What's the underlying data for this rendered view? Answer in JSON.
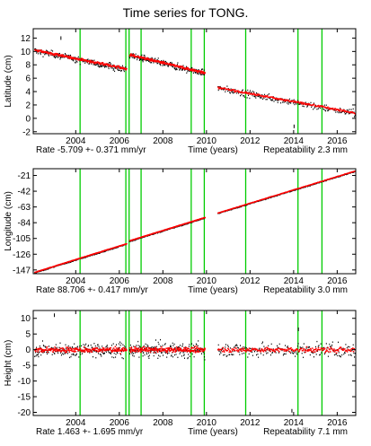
{
  "title": "Time series for TONG.",
  "colors": {
    "obs": "#000000",
    "model": "#ff0000",
    "event": "#00cc00",
    "frame": "#000000"
  },
  "chart_data": [
    {
      "type": "scatter",
      "ylabel": "Latitude (cm)",
      "xlabel": "Time (years)",
      "xlim": [
        2002.05,
        2016.85
      ],
      "ylim": [
        -2.3,
        13.4
      ],
      "x_ticks": [
        "2004",
        "2006",
        "2008",
        "2010",
        "2012",
        "2014",
        "2016"
      ],
      "y_ticks": [
        "-2",
        "0",
        "2",
        "4",
        "6",
        "8",
        "10",
        "12"
      ],
      "rate_text": "Rate -5.709 +- 0.371 mm/yr",
      "repeat_text": "Repeatability 2.3 mm",
      "event_lines": [
        2004.2,
        2006.3,
        2006.45,
        2007.0,
        2009.3,
        2009.9,
        2011.8,
        2014.2,
        2015.3
      ],
      "segments": [
        {
          "x": [
            2002.1,
            2006.3
          ],
          "y": [
            10.2,
            7.4
          ]
        },
        {
          "x": [
            2006.45,
            2009.9
          ],
          "y": [
            9.5,
            6.8
          ]
        },
        {
          "x": [
            2010.5,
            2016.8
          ],
          "y": [
            4.6,
            0.8
          ]
        }
      ],
      "noise": 0.35,
      "outliers": [
        {
          "x": 2003.3,
          "y": 12.0
        },
        {
          "x": 2014.0,
          "y": -1.2
        }
      ]
    },
    {
      "type": "scatter",
      "ylabel": "Longitude (cm)",
      "xlabel": "Time (years)",
      "xlim": [
        2002.05,
        2016.85
      ],
      "ylim": [
        -152,
        -12
      ],
      "x_ticks": [
        "2004",
        "2006",
        "2008",
        "2010",
        "2012",
        "2014",
        "2016"
      ],
      "y_ticks": [
        "-147",
        "-126",
        "-105",
        "-84",
        "-63",
        "-42",
        "-21"
      ],
      "rate_text": "Rate 88.706 +- 0.417 mm/yr",
      "repeat_text": "Repeatability 3.0 mm",
      "event_lines": [
        2004.2,
        2006.3,
        2006.45,
        2007.0,
        2009.3,
        2009.9,
        2011.8,
        2014.2,
        2015.3
      ],
      "segments": [
        {
          "x": [
            2002.1,
            2006.3
          ],
          "y": [
            -150.0,
            -112.0
          ]
        },
        {
          "x": [
            2006.45,
            2009.9
          ],
          "y": [
            -108.0,
            -77.0
          ]
        },
        {
          "x": [
            2010.5,
            2016.8
          ],
          "y": [
            -71.0,
            -15.0
          ]
        }
      ],
      "noise": 0.5,
      "outliers": []
    },
    {
      "type": "scatter",
      "ylabel": "Height (cm)",
      "xlabel": "Time (years)",
      "xlim": [
        2002.05,
        2016.85
      ],
      "ylim": [
        -21,
        12.5
      ],
      "x_ticks": [
        "2004",
        "2006",
        "2008",
        "2010",
        "2012",
        "2014",
        "2016"
      ],
      "y_ticks": [
        "-20",
        "-15",
        "-10",
        "-5",
        "0",
        "5",
        "10"
      ],
      "rate_text": "Rate 1.463 +- 1.695 mm/yr",
      "repeat_text": "Repeatability 7.1 mm",
      "event_lines": [
        2004.2,
        2006.3,
        2006.45,
        2007.0,
        2009.3,
        2009.9,
        2011.8,
        2014.2,
        2015.3
      ],
      "segments": [
        {
          "x": [
            2002.1,
            2006.3
          ],
          "y": [
            0.0,
            0.0
          ]
        },
        {
          "x": [
            2006.45,
            2009.9
          ],
          "y": [
            0.0,
            0.0
          ]
        },
        {
          "x": [
            2010.5,
            2016.8
          ],
          "y": [
            0.0,
            0.0
          ]
        }
      ],
      "noise": 1.6,
      "outliers": [
        {
          "x": 2003.0,
          "y": 11.0
        },
        {
          "x": 2013.9,
          "y": -19.5
        },
        {
          "x": 2014.2,
          "y": 6.5
        }
      ]
    }
  ]
}
